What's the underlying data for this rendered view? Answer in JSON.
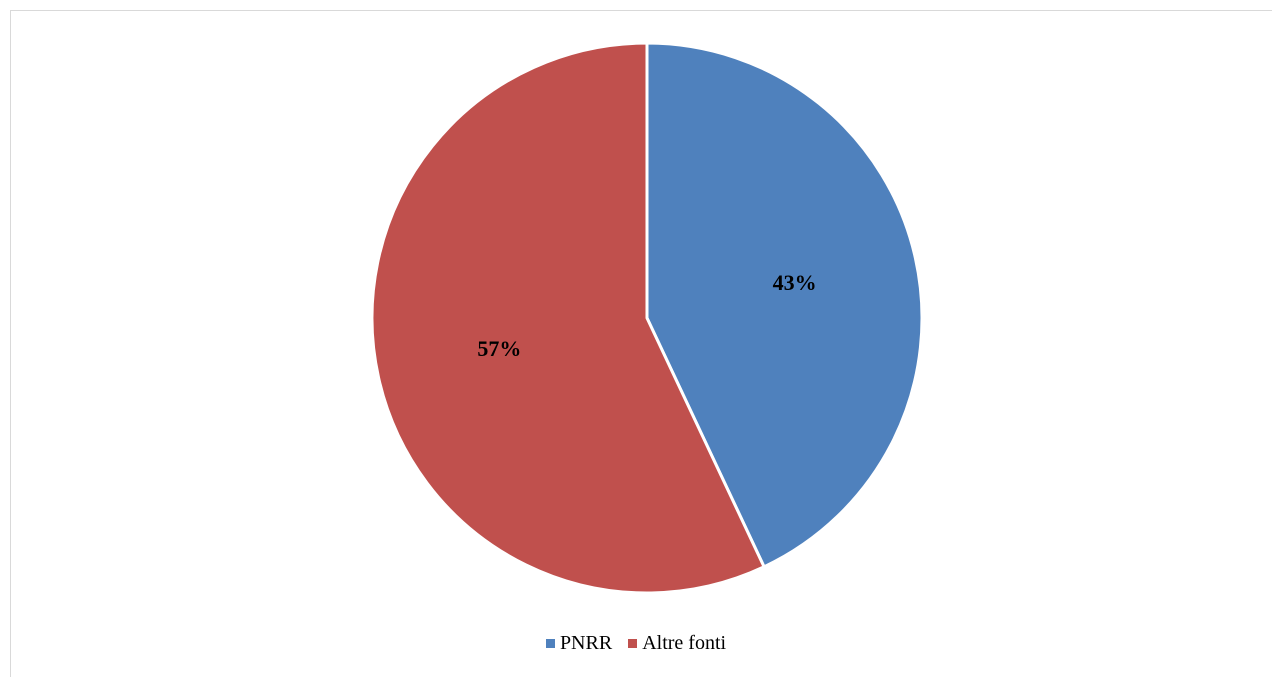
{
  "chart_data": {
    "type": "pie",
    "categories": [
      "PNRR",
      "Altre fonti"
    ],
    "values": [
      43,
      57
    ],
    "data_labels": [
      "43%",
      "57%"
    ],
    "colors": [
      "#4f81bd",
      "#c0504d"
    ],
    "start_angle": "12 o'clock, clockwise",
    "legend_position": "bottom"
  }
}
